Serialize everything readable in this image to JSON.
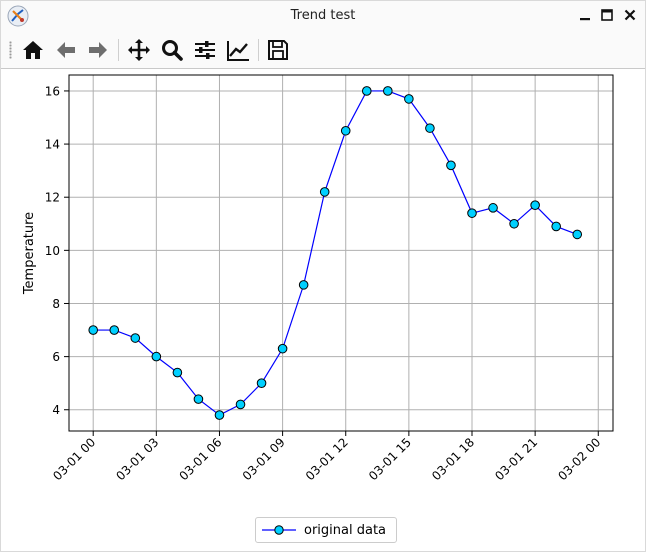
{
  "window": {
    "title": "Trend test"
  },
  "toolbar": {
    "buttons": [
      {
        "name": "home-button",
        "icon": "home-icon"
      },
      {
        "name": "back-button",
        "icon": "arrow-left-icon"
      },
      {
        "name": "forward-button",
        "icon": "arrow-right-icon"
      },
      {
        "name": "pan-button",
        "icon": "move-icon"
      },
      {
        "name": "zoom-button",
        "icon": "magnifier-icon"
      },
      {
        "name": "subplots-button",
        "icon": "sliders-icon"
      },
      {
        "name": "axes-button",
        "icon": "line-chart-icon"
      },
      {
        "name": "save-button",
        "icon": "floppy-disk-icon"
      }
    ]
  },
  "chart_data": {
    "type": "line",
    "title": "",
    "xlabel": "",
    "ylabel": "Temperature",
    "x_tick_labels": [
      "03-01 00",
      "03-01 03",
      "03-01 06",
      "03-01 09",
      "03-01 12",
      "03-01 15",
      "03-01 18",
      "03-01 21",
      "03-02 00"
    ],
    "y_tick_labels": [
      "4",
      "6",
      "8",
      "10",
      "12",
      "14",
      "16"
    ],
    "xlim": [
      "03-01 00",
      "03-02 00"
    ],
    "ylim": [
      3.2,
      16.6
    ],
    "grid": true,
    "legend_position": "bottom-center",
    "series": [
      {
        "name": "original data",
        "line_color": "#0000ff",
        "marker_face": "#00d0ff",
        "marker_edge": "#000000",
        "x": [
          "03-01 00",
          "03-01 01",
          "03-01 02",
          "03-01 03",
          "03-01 04",
          "03-01 05",
          "03-01 06",
          "03-01 07",
          "03-01 08",
          "03-01 09",
          "03-01 10",
          "03-01 11",
          "03-01 12",
          "03-01 13",
          "03-01 14",
          "03-01 15",
          "03-01 16",
          "03-01 17",
          "03-01 18",
          "03-01 19",
          "03-01 20",
          "03-01 21",
          "03-01 22",
          "03-01 23"
        ],
        "y": [
          7.0,
          7.0,
          6.7,
          6.0,
          5.4,
          4.4,
          3.8,
          4.2,
          5.0,
          6.3,
          8.7,
          12.2,
          14.5,
          16.0,
          16.0,
          15.7,
          14.6,
          13.2,
          11.4,
          11.6,
          11.0,
          11.7,
          10.9,
          10.6
        ]
      }
    ]
  }
}
